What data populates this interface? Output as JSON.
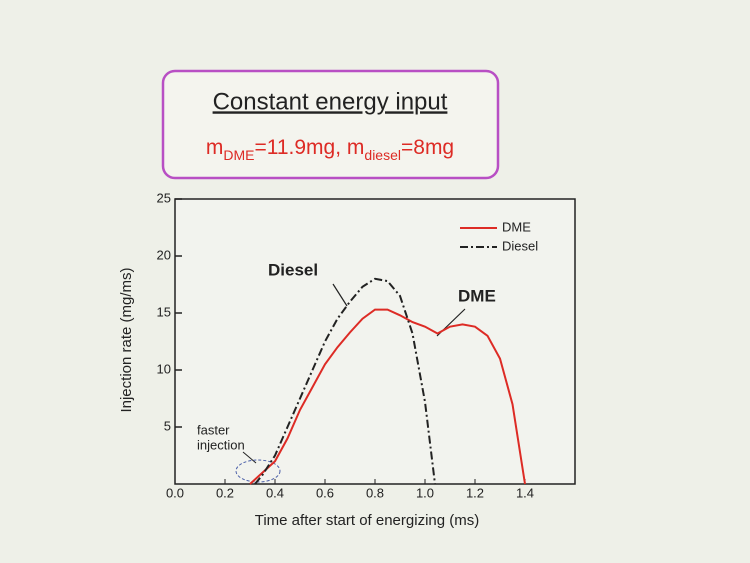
{
  "chart_data": {
    "type": "line",
    "title": "Constant energy input",
    "subtitle": [
      "m",
      "DME",
      "=11.9mg, m",
      "diesel",
      "=8mg"
    ],
    "xlabel": "Time after start of energizing (ms)",
    "ylabel": "Injection rate (mg/ms)",
    "annotations": [
      "Diesel",
      "DME",
      "faster",
      "injection"
    ],
    "xlim": [
      0,
      1.6
    ],
    "ylim": [
      0,
      25
    ],
    "xticks": [
      {
        "value": 0,
        "label": "0.0"
      },
      0.2,
      0.4,
      0.6,
      0.8,
      {
        "value": 1,
        "label": "1.0"
      },
      1.2,
      1.4
    ],
    "yticks": [
      5,
      10,
      15,
      20,
      25
    ],
    "legend": "upper right",
    "series": [
      {
        "name": "DME",
        "color": "#dd2b25",
        "style": "solid",
        "x": [
          0.3,
          0.35,
          0.4,
          0.45,
          0.5,
          0.55,
          0.6,
          0.65,
          0.7,
          0.75,
          0.8,
          0.85,
          0.9,
          0.95,
          1.0,
          1.05,
          1.1,
          1.15,
          1.2,
          1.25,
          1.3,
          1.35,
          1.4
        ],
        "values": [
          0,
          1,
          2,
          4,
          6.5,
          8.5,
          10.5,
          12,
          13.3,
          14.5,
          15.3,
          15.3,
          14.8,
          14.2,
          13.8,
          13.2,
          13.8,
          14,
          13.8,
          13,
          11,
          7,
          0
        ]
      },
      {
        "name": "Diesel",
        "color": "#222222",
        "style": "dashdot",
        "x": [
          0.32,
          0.35,
          0.4,
          0.45,
          0.5,
          0.55,
          0.6,
          0.65,
          0.7,
          0.75,
          0.8,
          0.85,
          0.9,
          0.95,
          1.0,
          1.04
        ],
        "values": [
          0,
          0.8,
          2.5,
          5,
          7.5,
          10,
          12.5,
          14.5,
          16,
          17.3,
          18,
          17.8,
          16.5,
          13.2,
          7.2,
          0
        ]
      }
    ]
  }
}
